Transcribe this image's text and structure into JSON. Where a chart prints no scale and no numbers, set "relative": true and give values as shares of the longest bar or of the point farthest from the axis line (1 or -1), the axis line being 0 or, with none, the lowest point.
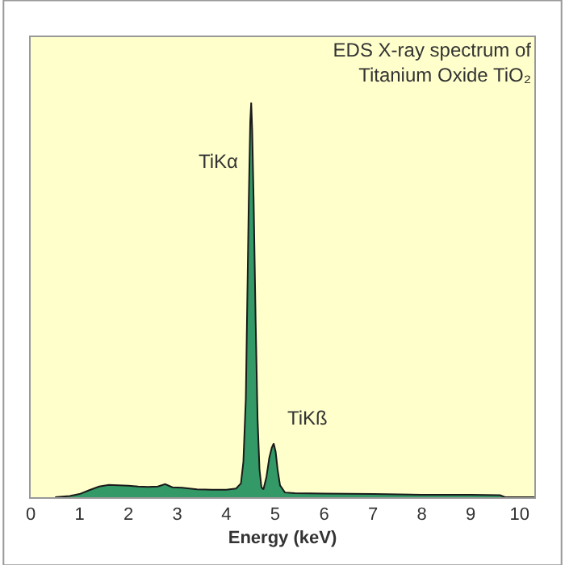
{
  "chart_data": {
    "type": "area",
    "relative": true,
    "title": "EDS X-ray spectrum of\nTitanium Oxide TiO₂",
    "xlabel": "Energy (keV)",
    "xlim": [
      0,
      10.3
    ],
    "xticks": [
      0,
      1,
      2,
      3,
      4,
      5,
      6,
      7,
      8,
      9,
      10
    ],
    "grid": false,
    "x": [
      0.5,
      0.8,
      1.0,
      1.2,
      1.4,
      1.6,
      1.8,
      2.0,
      2.2,
      2.4,
      2.6,
      2.75,
      2.9,
      3.1,
      3.4,
      3.7,
      4.0,
      4.2,
      4.3,
      4.35,
      4.4,
      4.43,
      4.46,
      4.49,
      4.51,
      4.53,
      4.56,
      4.6,
      4.64,
      4.68,
      4.72,
      4.76,
      4.82,
      4.88,
      4.93,
      4.97,
      5.01,
      5.05,
      5.1,
      5.2,
      5.4,
      6.0,
      7.0,
      8.0,
      9.0,
      9.6,
      9.7,
      10.3
    ],
    "series": [
      {
        "color": "#339966",
        "values": [
          0.0,
          0.003,
          0.008,
          0.018,
          0.027,
          0.031,
          0.03,
          0.029,
          0.027,
          0.026,
          0.027,
          0.033,
          0.025,
          0.024,
          0.02,
          0.019,
          0.019,
          0.022,
          0.035,
          0.09,
          0.25,
          0.5,
          0.75,
          0.95,
          1.0,
          0.93,
          0.75,
          0.45,
          0.2,
          0.07,
          0.025,
          0.02,
          0.05,
          0.1,
          0.125,
          0.136,
          0.115,
          0.07,
          0.03,
          0.012,
          0.01,
          0.009,
          0.008,
          0.006,
          0.006,
          0.005,
          0.0,
          0.0
        ]
      }
    ],
    "annotations": [
      {
        "text": "TiKα",
        "x": 4.47,
        "y": 0.85
      },
      {
        "text": "TiKß",
        "x": 4.97,
        "y": 0.136
      }
    ]
  }
}
